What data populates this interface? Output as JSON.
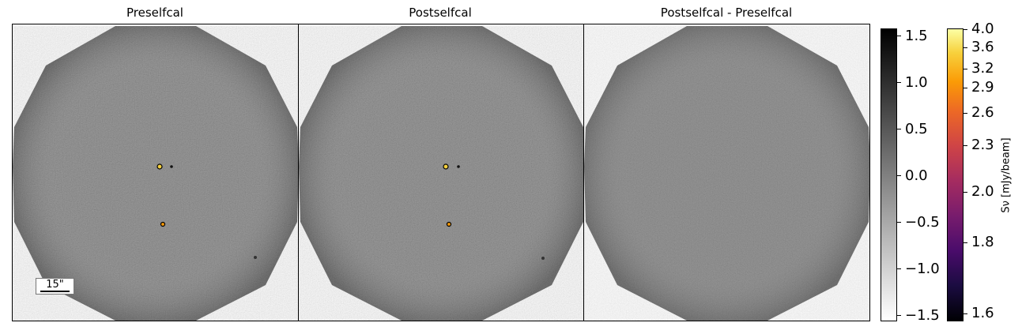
{
  "panels": [
    {
      "title": "Preselfcal"
    },
    {
      "title": "Postselfcal"
    },
    {
      "title": "Postselfcal - Preselfcal"
    }
  ],
  "scalebar": {
    "label": "15\""
  },
  "colorbar_gray": {
    "ticks": [
      "1.5",
      "1.0",
      "0.5",
      "0.0",
      "−0.5",
      "−1.0",
      "−1.5"
    ]
  },
  "colorbar_inferno": {
    "ticks": [
      "4.0",
      "3.6",
      "3.2",
      "2.9",
      "2.6",
      "2.3",
      "2.0",
      "1.8",
      "1.6"
    ],
    "label": "Sν [mJy/beam]"
  }
}
